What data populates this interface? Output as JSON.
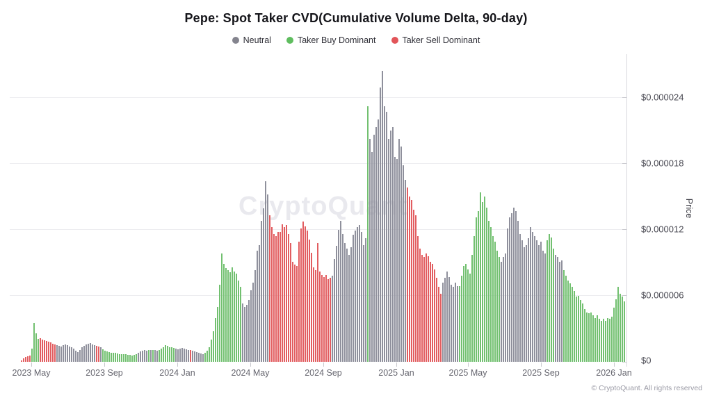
{
  "title": "Pepe: Spot Taker CVD(Cumulative Volume Delta, 90-day)",
  "watermark": "CryptoQuant",
  "footer": "© CryptoQuant. All rights reserved",
  "legend": [
    {
      "label": "Neutral",
      "color": "#84848e"
    },
    {
      "label": "Taker Buy Dominant",
      "color": "#5fbd5f"
    },
    {
      "label": "Taker Sell Dominant",
      "color": "#e25559"
    }
  ],
  "y_axis": {
    "label": "Price",
    "ticks": [
      "$0.000024",
      "$0.000018",
      "$0.000012",
      "$0.000006",
      "$0"
    ]
  },
  "x_axis": {
    "ticks": [
      "2023 May",
      "2023 Sep",
      "2024 Jan",
      "2024 May",
      "2024 Sep",
      "2025 Jan",
      "2025 May",
      "2025 Sep",
      "2026 Jan"
    ]
  },
  "colors": {
    "neutral": "#8f909c",
    "taker_buy": "#72c070",
    "taker_sell": "#e25d60",
    "grid": "#ededf0",
    "axis_line": "#d8d8dd"
  },
  "chart_data": {
    "type": "bar",
    "title": "Pepe: Spot Taker CVD(Cumulative Volume Delta, 90-day)",
    "ylabel": "Price",
    "xlabel": "",
    "x_range": "2023 Apr to 2026 Jan, each bar ~3.5 days",
    "x_tick_labels": [
      "2023 May",
      "2023 Sep",
      "2024 Jan",
      "2024 May",
      "2024 Sep",
      "2025 Jan",
      "2025 May",
      "2025 Sep",
      "2026 Jan"
    ],
    "y_tick_labels": [
      "$0",
      "$0.000006",
      "$0.000012",
      "$0.000018",
      "$0.000024"
    ],
    "ylim_usd": [
      0,
      2.65e-05
    ],
    "grid": true,
    "legend_position": "top",
    "unit": "values are PEPE price in USD × 1e-6, bar color = taker CVD regime",
    "color_key": {
      "n": "Neutral",
      "g": "Taker Buy Dominant",
      "r": "Taker Sell Dominant"
    },
    "colors_rle": "5r4g8r19n2r1n17g5n1g1n1g2n8g7n1r6n18g13n30r17n1g18n17r8n20g22n4g4n30g",
    "values_e6": [
      0.15,
      0.3,
      0.45,
      0.5,
      0.55,
      1.2,
      3.5,
      2.6,
      2.1,
      2.15,
      2.05,
      1.95,
      1.9,
      1.82,
      1.75,
      1.65,
      1.55,
      1.5,
      1.45,
      1.4,
      1.5,
      1.55,
      1.5,
      1.42,
      1.35,
      1.2,
      1.0,
      0.9,
      1.1,
      1.3,
      1.45,
      1.55,
      1.65,
      1.7,
      1.6,
      1.5,
      1.45,
      1.4,
      1.3,
      1.15,
      1.0,
      0.95,
      0.9,
      0.85,
      0.8,
      0.82,
      0.78,
      0.72,
      0.7,
      0.68,
      0.7,
      0.65,
      0.62,
      0.6,
      0.65,
      0.7,
      0.85,
      0.95,
      1.0,
      1.05,
      1.0,
      1.05,
      1.1,
      1.1,
      1.05,
      1.0,
      1.1,
      1.2,
      1.35,
      1.5,
      1.45,
      1.35,
      1.3,
      1.25,
      1.2,
      1.15,
      1.2,
      1.25,
      1.2,
      1.15,
      1.1,
      1.05,
      1.0,
      0.95,
      0.9,
      0.85,
      0.75,
      0.7,
      0.8,
      1.0,
      1.3,
      2.0,
      2.8,
      4.0,
      5.0,
      7.0,
      9.8,
      8.9,
      8.5,
      8.3,
      8.1,
      8.6,
      8.2,
      8.0,
      7.4,
      6.8,
      5.3,
      5.0,
      5.2,
      5.6,
      6.5,
      7.2,
      8.3,
      10.1,
      10.6,
      12.8,
      13.9,
      16.4,
      15.2,
      13.3,
      12.2,
      11.6,
      11.4,
      11.8,
      11.8,
      12.5,
      12.2,
      12.4,
      11.6,
      10.8,
      9.1,
      8.8,
      8.7,
      10.9,
      12.1,
      12.7,
      12.3,
      11.9,
      11.1,
      9.9,
      8.6,
      8.3,
      10.8,
      8.2,
      7.9,
      7.7,
      7.9,
      7.5,
      7.6,
      7.8,
      9.3,
      10.5,
      12.0,
      12.8,
      11.6,
      10.8,
      10.3,
      9.7,
      10.4,
      11.5,
      11.9,
      12.2,
      12.4,
      11.8,
      10.6,
      11.2,
      23.2,
      20.2,
      19.0,
      20.6,
      21.3,
      22.0,
      24.9,
      26.4,
      23.2,
      22.7,
      20.2,
      21.0,
      21.3,
      18.6,
      18.4,
      20.2,
      19.5,
      17.8,
      16.5,
      15.8,
      15.0,
      14.7,
      13.8,
      13.3,
      11.4,
      10.3,
      9.7,
      9.5,
      9.8,
      9.6,
      9.1,
      8.9,
      8.4,
      7.6,
      6.8,
      6.2,
      7.2,
      7.6,
      8.2,
      7.7,
      7.0,
      6.8,
      7.2,
      6.9,
      6.9,
      7.8,
      8.7,
      8.9,
      8.4,
      8.0,
      9.7,
      11.4,
      13.1,
      13.7,
      15.4,
      14.5,
      15.0,
      14.0,
      12.8,
      12.2,
      11.4,
      10.9,
      10.1,
      9.5,
      9.1,
      9.5,
      9.8,
      12.1,
      13.1,
      13.5,
      14.0,
      13.7,
      12.8,
      11.6,
      11.0,
      10.4,
      10.6,
      11.2,
      12.2,
      11.8,
      11.4,
      11.0,
      10.6,
      10.9,
      10.1,
      9.8,
      11.0,
      11.6,
      11.3,
      10.3,
      9.7,
      9.5,
      9.1,
      9.2,
      8.3,
      7.8,
      7.4,
      7.1,
      6.8,
      6.4,
      5.9,
      6.0,
      5.6,
      5.3,
      4.8,
      4.5,
      4.4,
      4.5,
      4.2,
      4.0,
      4.2,
      3.9,
      3.7,
      3.9,
      3.7,
      4.0,
      3.9,
      4.1,
      4.9,
      5.7,
      6.8,
      6.2,
      5.9,
      5.5
    ]
  }
}
